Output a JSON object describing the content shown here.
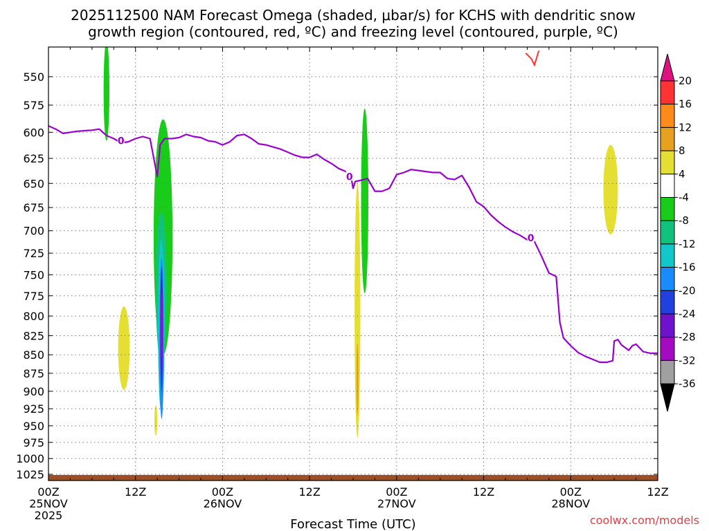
{
  "title_line1": "2025112500 NAM Forecast Omega (shaded, μbar/s) for KCHS with dendritic snow",
  "title_line2": "growth region (contoured, red, ºC) and freezing level (contoured, purple, ºC)",
  "xlabel": "Forecast Time (UTC)",
  "credit": "coolwx.com/models",
  "colors": {
    "freezing": "#9900cc",
    "dendritic": "#ff3333",
    "ground": "#9c4f26",
    "grid": "#777777"
  },
  "chart_data": {
    "type": "time-height",
    "title": "2025112500 NAM Forecast Omega (shaded, μbar/s) for KCHS with dendritic snow growth region (contoured, red, ºC) and freezing level (contoured, purple, ºC)",
    "xlabel": "Forecast Time (UTC)",
    "ylabel": "",
    "x_range_hours": [
      0,
      84
    ],
    "y_range_hpa": [
      525,
      1035
    ],
    "y_scale": "log-pressure (inverted)",
    "grid": true,
    "y_ticks": [
      550,
      575,
      600,
      625,
      650,
      675,
      700,
      725,
      750,
      775,
      800,
      825,
      850,
      875,
      900,
      925,
      950,
      975,
      1000,
      1025
    ],
    "x_ticks": [
      {
        "hour": 0,
        "lines": [
          "00Z",
          "25NOV",
          "2025"
        ]
      },
      {
        "hour": 12,
        "lines": [
          "12Z"
        ]
      },
      {
        "hour": 24,
        "lines": [
          "00Z",
          "26NOV"
        ]
      },
      {
        "hour": 36,
        "lines": [
          "12Z"
        ]
      },
      {
        "hour": 48,
        "lines": [
          "00Z",
          "27NOV"
        ]
      },
      {
        "hour": 60,
        "lines": [
          "12Z"
        ]
      },
      {
        "hour": 72,
        "lines": [
          "00Z",
          "28NOV"
        ]
      },
      {
        "hour": 84,
        "lines": [
          "12Z"
        ]
      }
    ],
    "colorbar": {
      "units": "μbar/s",
      "labels": [
        "20",
        "16",
        "12",
        "8",
        "4",
        "-4",
        "-8",
        "-12",
        "-16",
        "-20",
        "-24",
        "-28",
        "-32",
        "-36"
      ],
      "bands": [
        {
          "range": "above 20",
          "color": "#e0127f"
        },
        {
          "range": "16 to 20",
          "color": "#ff3333"
        },
        {
          "range": "12 to 16",
          "color": "#ff8c1a"
        },
        {
          "range": "8 to 12",
          "color": "#e6a21f"
        },
        {
          "range": "4 to 8",
          "color": "#e5df33"
        },
        {
          "range": "-4 to 4",
          "color": "#ffffff"
        },
        {
          "range": "-8 to -4",
          "color": "#19cc19"
        },
        {
          "range": "-12 to -8",
          "color": "#10c27e"
        },
        {
          "range": "-16 to -12",
          "color": "#12c7c7"
        },
        {
          "range": "-20 to -16",
          "color": "#1a8cff"
        },
        {
          "range": "-24 to -20",
          "color": "#2040e0"
        },
        {
          "range": "-28 to -24",
          "color": "#6f12cc"
        },
        {
          "range": "-32 to -28",
          "color": "#a30ac2"
        },
        {
          "range": "-36 to -32",
          "color": "#a0a0a0"
        },
        {
          "range": "below -36",
          "color": "#000000"
        }
      ]
    },
    "freezing_level": {
      "label": "0",
      "points": [
        [
          0,
          594
        ],
        [
          1,
          597
        ],
        [
          2,
          601
        ],
        [
          4,
          599
        ],
        [
          6,
          598
        ],
        [
          7,
          597
        ],
        [
          8,
          603
        ],
        [
          9,
          606
        ],
        [
          10,
          610
        ],
        [
          11,
          609
        ],
        [
          12,
          606
        ],
        [
          13,
          604
        ],
        [
          14,
          606
        ],
        [
          15,
          643
        ],
        [
          15.4,
          612
        ],
        [
          16,
          606
        ],
        [
          17,
          606
        ],
        [
          18,
          605
        ],
        [
          19,
          602
        ],
        [
          20,
          604
        ],
        [
          21,
          605
        ],
        [
          22,
          608
        ],
        [
          23,
          609
        ],
        [
          24,
          612
        ],
        [
          25,
          609
        ],
        [
          26,
          603
        ],
        [
          27,
          602
        ],
        [
          28,
          606
        ],
        [
          29,
          611
        ],
        [
          30,
          612
        ],
        [
          31,
          614
        ],
        [
          32,
          616
        ],
        [
          33,
          619
        ],
        [
          34,
          622
        ],
        [
          35,
          624
        ],
        [
          36,
          624
        ],
        [
          37,
          621
        ],
        [
          38,
          626
        ],
        [
          39,
          630
        ],
        [
          40,
          635
        ],
        [
          41,
          638
        ],
        [
          41.7,
          643
        ],
        [
          42,
          655
        ],
        [
          42.3,
          648
        ],
        [
          43,
          647
        ],
        [
          44,
          645
        ],
        [
          45,
          658
        ],
        [
          46,
          658
        ],
        [
          47,
          655
        ],
        [
          48,
          641
        ],
        [
          49,
          639
        ],
        [
          50,
          636
        ],
        [
          51,
          637
        ],
        [
          52,
          638
        ],
        [
          53,
          639
        ],
        [
          54,
          639
        ],
        [
          55,
          645
        ],
        [
          56,
          646
        ],
        [
          57,
          642
        ],
        [
          58,
          654
        ],
        [
          59,
          669
        ],
        [
          60,
          674
        ],
        [
          61,
          683
        ],
        [
          62,
          690
        ],
        [
          63,
          696
        ],
        [
          64,
          701
        ],
        [
          65,
          705
        ],
        [
          66,
          710
        ],
        [
          67,
          712
        ],
        [
          68,
          729
        ],
        [
          69,
          748
        ],
        [
          70,
          752
        ],
        [
          70.5,
          808
        ],
        [
          71,
          828
        ],
        [
          72,
          838
        ],
        [
          73,
          847
        ],
        [
          74,
          852
        ],
        [
          75,
          856
        ],
        [
          76,
          860
        ],
        [
          77,
          860
        ],
        [
          77.8,
          858
        ],
        [
          78,
          832
        ],
        [
          78.5,
          830
        ],
        [
          79,
          837
        ],
        [
          80,
          844
        ],
        [
          80.5,
          838
        ],
        [
          81,
          836
        ],
        [
          82,
          846
        ],
        [
          83,
          848
        ],
        [
          84,
          848
        ]
      ],
      "contour_labels": [
        [
          10,
          608
        ],
        [
          41.5,
          643
        ],
        [
          66.5,
          708
        ]
      ]
    },
    "dendritic_region": {
      "contour_label": "",
      "points": [
        [
          65.8,
          530
        ],
        [
          66.6,
          535
        ],
        [
          67,
          540
        ],
        [
          67.6,
          528
        ]
      ]
    },
    "omega_shaded_regions": [
      {
        "range": "-8 to -4",
        "color": "#19cc19",
        "x_hours": [
          7.6,
          8.4
        ],
        "p_hpa": [
          520,
          608
        ]
      },
      {
        "range": "-8 to -4",
        "color": "#19cc19",
        "x_hours": [
          14.5,
          17.1
        ],
        "p_hpa": [
          588,
          850
        ]
      },
      {
        "range": "-8 to -4",
        "color": "#19cc19",
        "x_hours": [
          43.1,
          44.1
        ],
        "p_hpa": [
          578,
          772
        ]
      },
      {
        "range": "-12 to -8",
        "color": "#10c27e",
        "x_hours": [
          14.8,
          16.3
        ],
        "p_hpa": [
          680,
          860
        ]
      },
      {
        "range": "-16 to -12",
        "color": "#12c7c7",
        "x_hours": [
          15.1,
          16.0
        ],
        "p_hpa": [
          710,
          930
        ]
      },
      {
        "range": "-20 to -16",
        "color": "#1a8cff",
        "x_hours": [
          15.3,
          15.9
        ],
        "p_hpa": [
          730,
          940
        ]
      },
      {
        "range": "-24 to -20",
        "color": "#2040e0",
        "x_hours": [
          15.4,
          15.8
        ],
        "p_hpa": [
          740,
          900
        ]
      },
      {
        "range": "-28 to -24",
        "color": "#6f12cc",
        "x_hours": [
          15.45,
          15.75
        ],
        "p_hpa": [
          755,
          880
        ]
      },
      {
        "range": "-32 to -28",
        "color": "#a30ac2",
        "x_hours": [
          15.5,
          15.7
        ],
        "p_hpa": [
          770,
          855
        ]
      },
      {
        "range": "4 to 8",
        "color": "#e5df33",
        "x_hours": [
          9.6,
          11.2
        ],
        "p_hpa": [
          788,
          898
        ]
      },
      {
        "range": "4 to 8",
        "color": "#e5df33",
        "x_hours": [
          14.6,
          15.0
        ],
        "p_hpa": [
          920,
          965
        ]
      },
      {
        "range": "4 to 8",
        "color": "#e5df33",
        "x_hours": [
          42.2,
          43.0
        ],
        "p_hpa": [
          650,
          968
        ]
      },
      {
        "range": "8 to 12",
        "color": "#e6a21f",
        "x_hours": [
          42.45,
          42.75
        ],
        "p_hpa": [
          835,
          935
        ]
      },
      {
        "range": "4 to 8",
        "color": "#e5df33",
        "x_hours": [
          76.5,
          78.5
        ],
        "p_hpa": [
          612,
          704
        ]
      }
    ]
  }
}
